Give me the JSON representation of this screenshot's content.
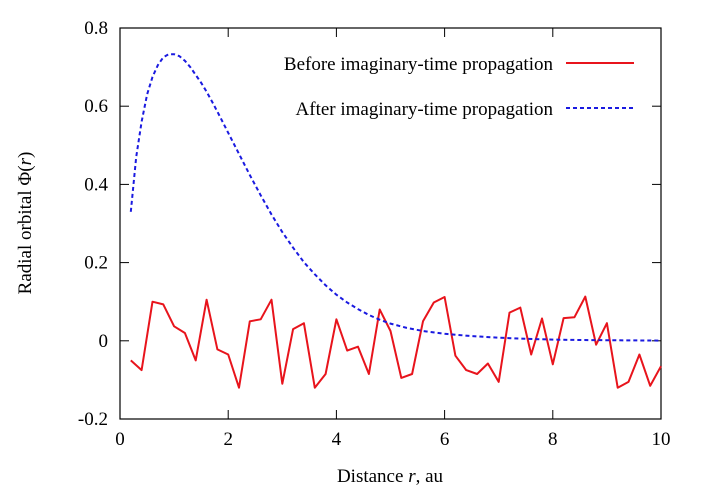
{
  "chart_data": {
    "type": "line",
    "xlabel_prefix": "Distance",
    "xlabel_var": "r",
    "xlabel_suffix": ", au",
    "ylabel_prefix": "Radial orbital",
    "ylabel_func": "Φ(",
    "ylabel_var": "r",
    "ylabel_close": ")",
    "xlim": [
      0,
      10
    ],
    "ylim": [
      -0.2,
      0.8
    ],
    "xticks": [
      0,
      2,
      4,
      6,
      8,
      10
    ],
    "xtick_labels": [
      "0",
      "2",
      "4",
      "6",
      "8",
      "10"
    ],
    "yticks": [
      -0.2,
      0,
      0.2,
      0.4,
      0.6,
      0.8
    ],
    "ytick_labels": [
      "-0.2",
      "0",
      "0.2",
      "0.4",
      "0.6",
      "0.8"
    ],
    "legend_position": "top-right",
    "series": [
      {
        "name": "Before imaginary-time propagation",
        "color": "#e8141c",
        "style": "solid",
        "x": [
          0.2,
          0.4,
          0.6,
          0.8,
          1.0,
          1.2,
          1.4,
          1.6,
          1.8,
          2.0,
          2.2,
          2.4,
          2.6,
          2.8,
          3.0,
          3.2,
          3.4,
          3.6,
          3.8,
          4.0,
          4.2,
          4.4,
          4.6,
          4.8,
          5.0,
          5.2,
          5.4,
          5.6,
          5.8,
          6.0,
          6.2,
          6.4,
          6.6,
          6.8,
          7.0,
          7.2,
          7.4,
          7.6,
          7.8,
          8.0,
          8.2,
          8.4,
          8.6,
          8.8,
          9.0,
          9.2,
          9.4,
          9.6,
          9.8,
          10.0
        ],
        "y": [
          -0.05,
          -0.075,
          0.1,
          0.093,
          0.037,
          0.02,
          -0.05,
          0.105,
          -0.022,
          -0.035,
          -0.12,
          0.05,
          0.055,
          0.105,
          -0.11,
          0.03,
          0.045,
          -0.12,
          -0.085,
          0.055,
          -0.025,
          -0.015,
          -0.085,
          0.08,
          0.025,
          -0.095,
          -0.085,
          0.05,
          0.098,
          0.112,
          -0.038,
          -0.075,
          -0.085,
          -0.058,
          -0.105,
          0.072,
          0.085,
          -0.035,
          0.057,
          -0.06,
          0.058,
          0.06,
          0.113,
          -0.01,
          0.045,
          -0.12,
          -0.105,
          -0.035,
          -0.115,
          -0.065
        ]
      },
      {
        "name": "After imaginary-time propagation",
        "color": "#1a1ae0",
        "style": "dashed",
        "x": [
          0.2,
          0.3,
          0.4,
          0.5,
          0.6,
          0.7,
          0.8,
          0.9,
          1.0,
          1.1,
          1.2,
          1.3,
          1.4,
          1.5,
          1.6,
          1.7,
          1.8,
          1.9,
          2.0,
          2.2,
          2.4,
          2.6,
          2.8,
          3.0,
          3.2,
          3.4,
          3.6,
          3.8,
          4.0,
          4.2,
          4.4,
          4.6,
          4.8,
          5.0,
          5.3,
          5.6,
          6.0,
          6.5,
          7.0,
          7.5,
          8.0,
          8.5,
          9.0,
          9.5,
          10.0
        ],
        "y": [
          0.33,
          0.47,
          0.56,
          0.63,
          0.675,
          0.705,
          0.725,
          0.733,
          0.733,
          0.728,
          0.716,
          0.7,
          0.68,
          0.66,
          0.637,
          0.612,
          0.586,
          0.559,
          0.532,
          0.478,
          0.424,
          0.372,
          0.323,
          0.278,
          0.238,
          0.201,
          0.17,
          0.142,
          0.118,
          0.098,
          0.081,
          0.066,
          0.054,
          0.044,
          0.033,
          0.025,
          0.018,
          0.012,
          0.008,
          0.005,
          0.003,
          0.002,
          0.0015,
          0.001,
          0.0005
        ]
      }
    ]
  }
}
